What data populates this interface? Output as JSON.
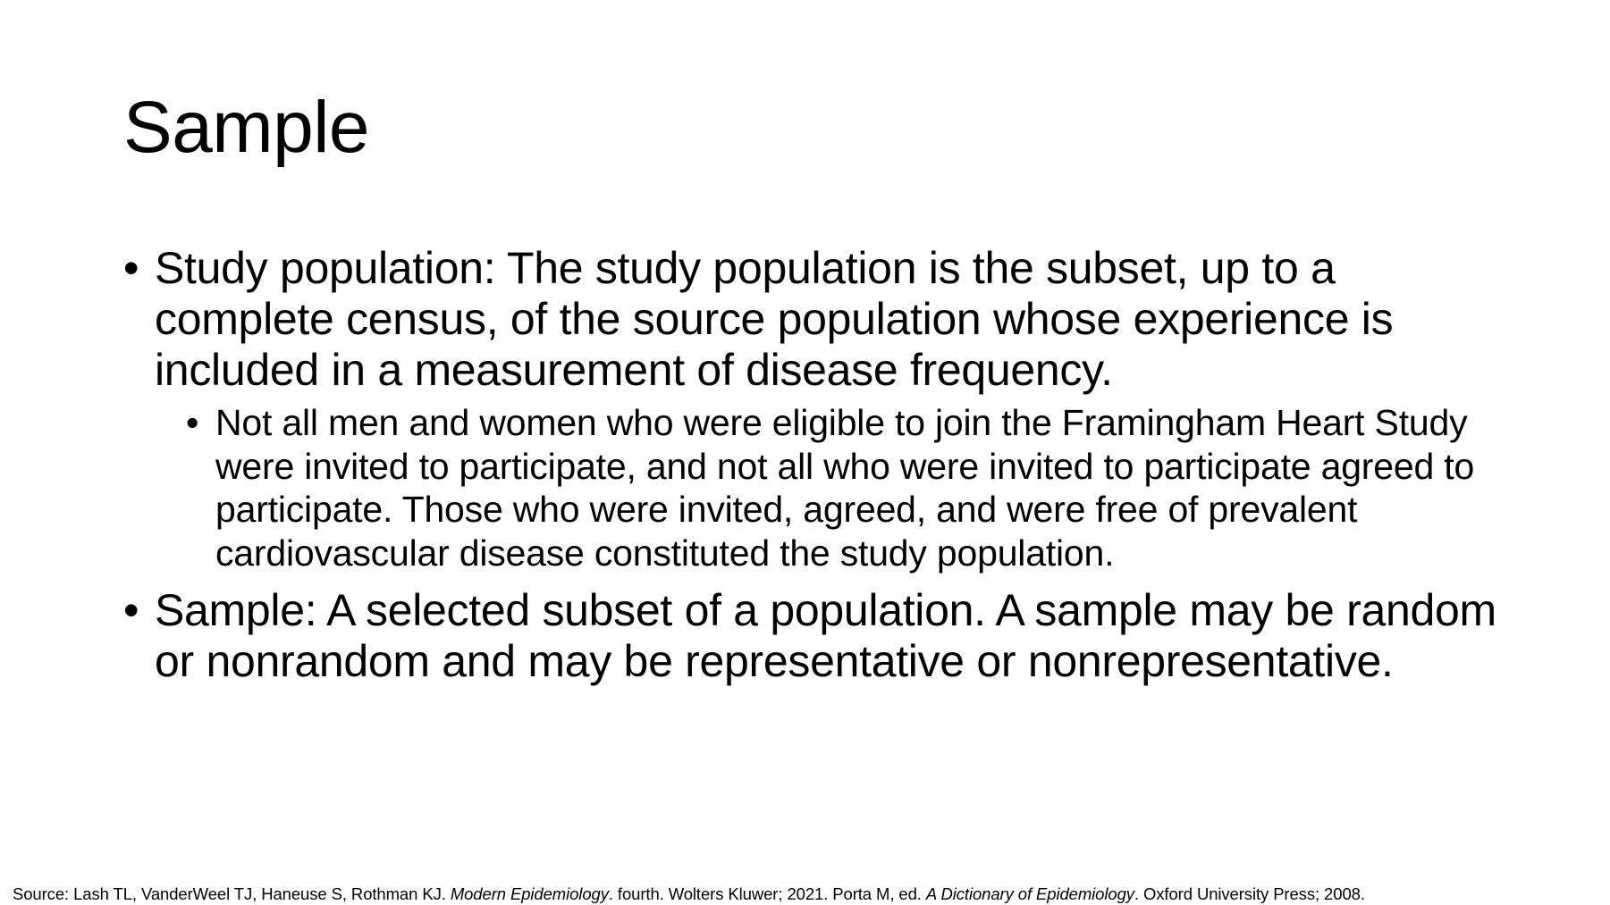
{
  "slide": {
    "title": "Sample",
    "bullets": [
      {
        "marker": "•",
        "text": "Study population: The study population is the subset, up to a complete census, of the source population whose experience is included in a measurement of disease frequency.",
        "sub_bullets": [
          {
            "marker": "•",
            "text": "Not all men and women who were eligible to join the Framingham Heart Study were invited to participate, and not all who were invited to participate agreed to participate. Those who were invited, agreed, and were free of prevalent cardiovascular disease constituted the study population."
          }
        ]
      },
      {
        "marker": "•",
        "text": "Sample: A selected subset of a population. A sample may be random or nonrandom and may be representative or nonrepresentative."
      }
    ],
    "source": {
      "prefix": "Source: Lash TL, VanderWeel TJ, Haneuse S, Rothman KJ. ",
      "book1": "Modern Epidemiology",
      "middle": ". fourth. Wolters Kluwer; 2021. Porta M, ed. ",
      "book2": "A Dictionary of Epidemiology",
      "suffix": ". Oxford University Press; 2008."
    }
  }
}
